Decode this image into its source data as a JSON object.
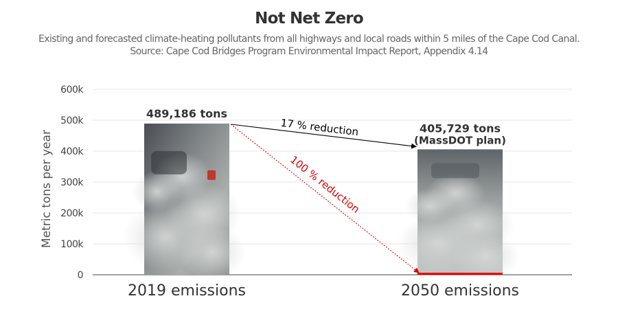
{
  "chart_data": {
    "type": "bar",
    "title": "Not Net Zero",
    "subtitle": "Existing and forecasted climate-heating pollutants from all highways and local roads within 5 miles of the Cape Cod Canal.",
    "source": "Source: Cape Cod Bridges Program Environmental Impact Report, Appendix 4.14",
    "ylabel": "Metric tons per year",
    "ylim": [
      0,
      600000
    ],
    "yticks": [
      {
        "value": 0,
        "label": "0"
      },
      {
        "value": 100000,
        "label": "100k"
      },
      {
        "value": 200000,
        "label": "200k"
      },
      {
        "value": 300000,
        "label": "300k"
      },
      {
        "value": 400000,
        "label": "400k"
      },
      {
        "value": 500000,
        "label": "500k"
      },
      {
        "value": 600000,
        "label": "600k"
      }
    ],
    "categories": [
      "2019 emissions",
      "2050 emissions"
    ],
    "values": [
      489186,
      405729
    ],
    "data_labels": [
      [
        "489,186 tons"
      ],
      [
        "405,729 tons",
        "(MassDOT plan)"
      ]
    ],
    "target": {
      "category": "2050 emissions",
      "value": 0
    },
    "annotations": [
      {
        "text": "17 % reduction",
        "from": "2019 emissions",
        "to": "2050 emissions",
        "to_value": 405729,
        "color": "#000000",
        "style": "solid"
      },
      {
        "text": "100 % reduction",
        "from": "2019 emissions",
        "to": "2050 emissions",
        "to_value": 0,
        "color": "#dd0000",
        "style": "dotted"
      }
    ],
    "grid": true
  }
}
